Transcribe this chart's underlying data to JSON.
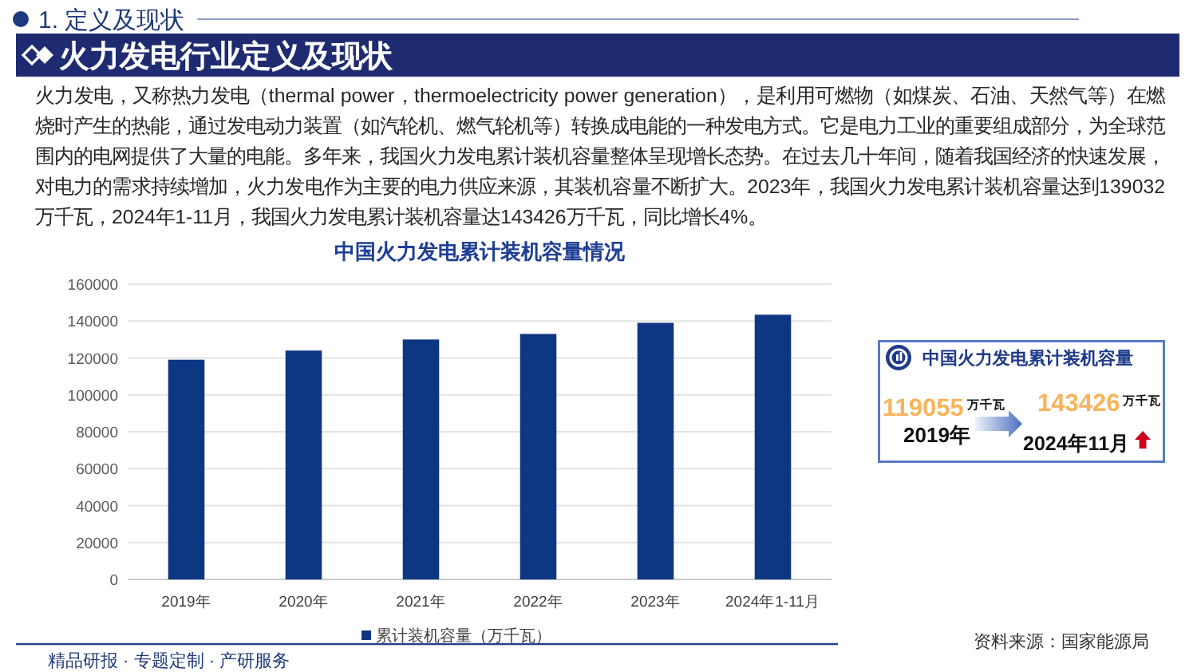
{
  "chart_data": [
    {
      "type": "bar",
      "title": "中国火力发电累计装机容量情况",
      "categories": [
        "2019年",
        "2020年",
        "2021年",
        "2022年",
        "2023年",
        "2024年1-11月"
      ],
      "series": [
        {
          "name": "累计装机容量（万千瓦）",
          "color": "#0e3682",
          "values": [
            119055,
            124000,
            130000,
            133000,
            139032,
            143426
          ]
        }
      ],
      "ylim": [
        0,
        160000
      ],
      "yticks": [
        0,
        20000,
        40000,
        60000,
        80000,
        100000,
        120000,
        140000,
        160000
      ],
      "grid": "y",
      "legend": "bottom",
      "annotations": [
        "1. 定义及现状",
        "火力发电行业定义及现状",
        "火力发电，又称热力发电（thermal power，thermoelectricity power generation），是利用可燃物（如煤炭、石油、天然气等）在燃烧时产生的热能，通过发电动力装置（如汽轮机、燃气轮机等）转换成电能的一种发电方式。它是电力工业的重要组成部分，为全球范围内的电网提供了大量的电能。多年来，我国火力发电累计装机容量整体呈现增长态势。在过去几十年间，随着我国经济的快速发展，对电力的需求持续增加，火力发电作为主要的电力供应来源，其装机容量不断扩大。2023年，我国火力发电累计装机容量达到139032万千瓦，2024年1-11月，我国火力发电累计装机容量达143426万千瓦，同比增长4%。",
        "资料来源：国家能源局",
        "精品研报 · 专题定制 · 产研服务"
      ]
    },
    {
      "type": "other",
      "title": "中国火力发电累计装机容量",
      "annotations": [
        "119055",
        "万千瓦",
        "2019年",
        "143426",
        "万千瓦",
        "2024年11月"
      ]
    }
  ]
}
